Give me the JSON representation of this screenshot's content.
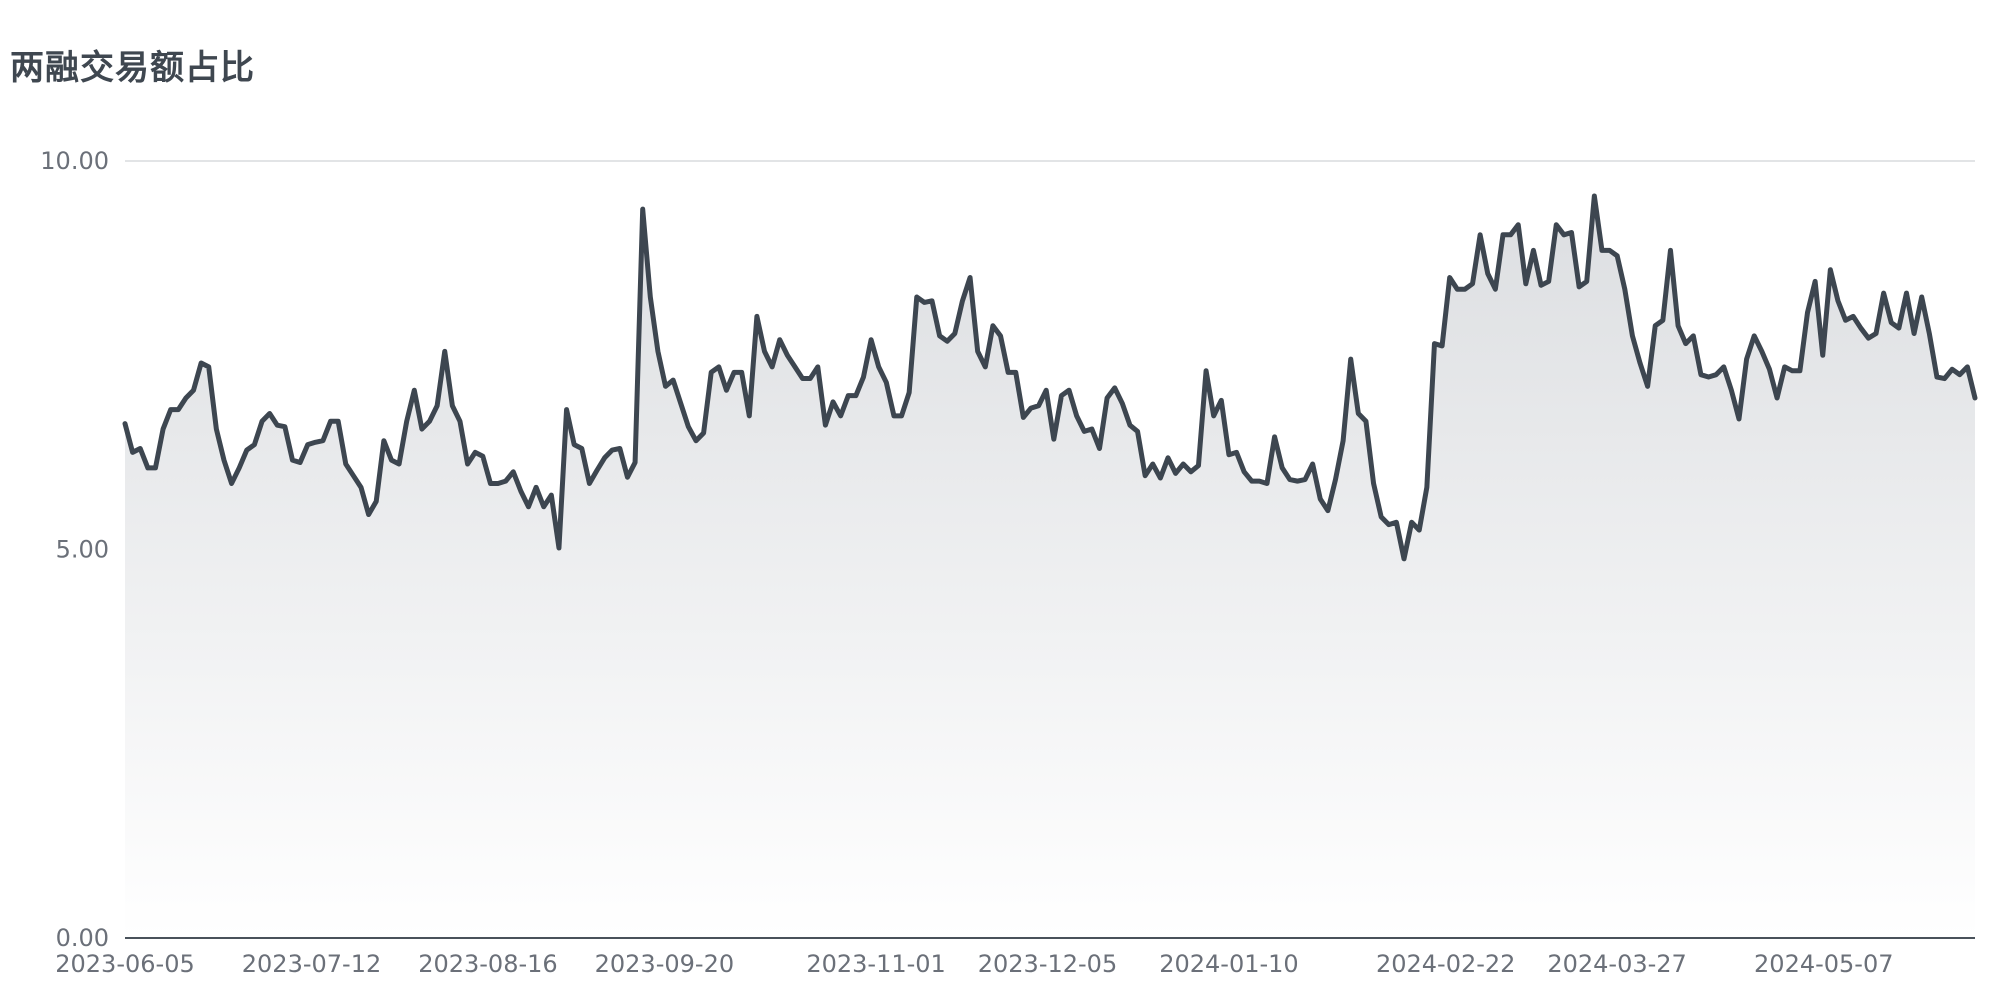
{
  "title": "两融交易额占比",
  "colors": {
    "line": "#3d4650",
    "area_top": "#dcdee1",
    "area_bottom": "#ffffff",
    "grid": "#d9dbde",
    "text": "#6b7079"
  },
  "chart_data": {
    "type": "area",
    "title": "两融交易额占比",
    "xlabel": "",
    "ylabel": "",
    "ylim": [
      0,
      10
    ],
    "yticks": [
      "0.00",
      "5.00",
      "10.00"
    ],
    "xticks": [
      "2023-06-05",
      "2023-07-12",
      "2023-08-16",
      "2023-09-20",
      "2023-11-01",
      "2023-12-05",
      "2024-01-10",
      "2024-02-22",
      "2024-03-27",
      "2024-05-07"
    ],
    "x_range": [
      "2023-06-05",
      "2024-06-06"
    ],
    "grid": true,
    "values": [
      6.62,
      6.25,
      6.3,
      6.05,
      6.05,
      6.55,
      6.8,
      6.8,
      6.95,
      7.05,
      7.4,
      7.35,
      6.55,
      6.15,
      5.85,
      6.05,
      6.28,
      6.35,
      6.65,
      6.75,
      6.6,
      6.58,
      6.15,
      6.12,
      6.35,
      6.38,
      6.4,
      6.65,
      6.65,
      6.1,
      5.95,
      5.8,
      5.45,
      5.62,
      6.4,
      6.15,
      6.1,
      6.65,
      7.05,
      6.55,
      6.65,
      6.85,
      7.55,
      6.85,
      6.65,
      6.1,
      6.25,
      6.2,
      5.85,
      5.85,
      5.88,
      6.0,
      5.75,
      5.55,
      5.8,
      5.55,
      5.7,
      5.02,
      6.8,
      6.35,
      6.3,
      5.85,
      6.02,
      6.18,
      6.28,
      6.3,
      5.93,
      6.12,
      9.38,
      8.25,
      7.55,
      7.1,
      7.18,
      6.88,
      6.58,
      6.4,
      6.5,
      7.28,
      7.35,
      7.05,
      7.28,
      7.28,
      6.72,
      8.0,
      7.55,
      7.35,
      7.7,
      7.5,
      7.35,
      7.2,
      7.2,
      7.35,
      6.6,
      6.9,
      6.72,
      6.98,
      6.98,
      7.22,
      7.7,
      7.35,
      7.15,
      6.72,
      6.72,
      7.02,
      8.25,
      8.18,
      8.2,
      7.75,
      7.68,
      7.78,
      8.2,
      8.5,
      7.55,
      7.35,
      7.88,
      7.75,
      7.28,
      7.28,
      6.7,
      6.82,
      6.85,
      7.05,
      6.42,
      6.98,
      7.05,
      6.72,
      6.52,
      6.55,
      6.3,
      6.95,
      7.08,
      6.88,
      6.6,
      6.52,
      5.95,
      6.1,
      5.92,
      6.18,
      5.98,
      6.1,
      6.0,
      6.08,
      7.3,
      6.72,
      6.92,
      6.22,
      6.25,
      6.0,
      5.88,
      5.88,
      5.85,
      6.45,
      6.05,
      5.9,
      5.88,
      5.9,
      6.1,
      5.65,
      5.5,
      5.9,
      6.4,
      7.45,
      6.75,
      6.65,
      5.85,
      5.42,
      5.32,
      5.35,
      4.88,
      5.35,
      5.25,
      5.8,
      7.65,
      7.62,
      8.5,
      8.35,
      8.35,
      8.42,
      9.05,
      8.55,
      8.35,
      9.05,
      9.05,
      9.18,
      8.42,
      8.85,
      8.4,
      8.45,
      9.18,
      9.05,
      9.08,
      8.38,
      8.45,
      9.55,
      8.85,
      8.85,
      8.78,
      8.35,
      7.75,
      7.4,
      7.1,
      7.88,
      7.95,
      8.85,
      7.88,
      7.65,
      7.75,
      7.25,
      7.22,
      7.25,
      7.35,
      7.05,
      6.68,
      7.45,
      7.75,
      7.55,
      7.32,
      6.95,
      7.35,
      7.3,
      7.3,
      8.05,
      8.45,
      7.5,
      8.6,
      8.2,
      7.95,
      8.0,
      7.85,
      7.72,
      7.78,
      8.3,
      7.92,
      7.85,
      8.3,
      7.78,
      8.25,
      7.78,
      7.22,
      7.2,
      7.32,
      7.25,
      7.35,
      6.95
    ]
  }
}
